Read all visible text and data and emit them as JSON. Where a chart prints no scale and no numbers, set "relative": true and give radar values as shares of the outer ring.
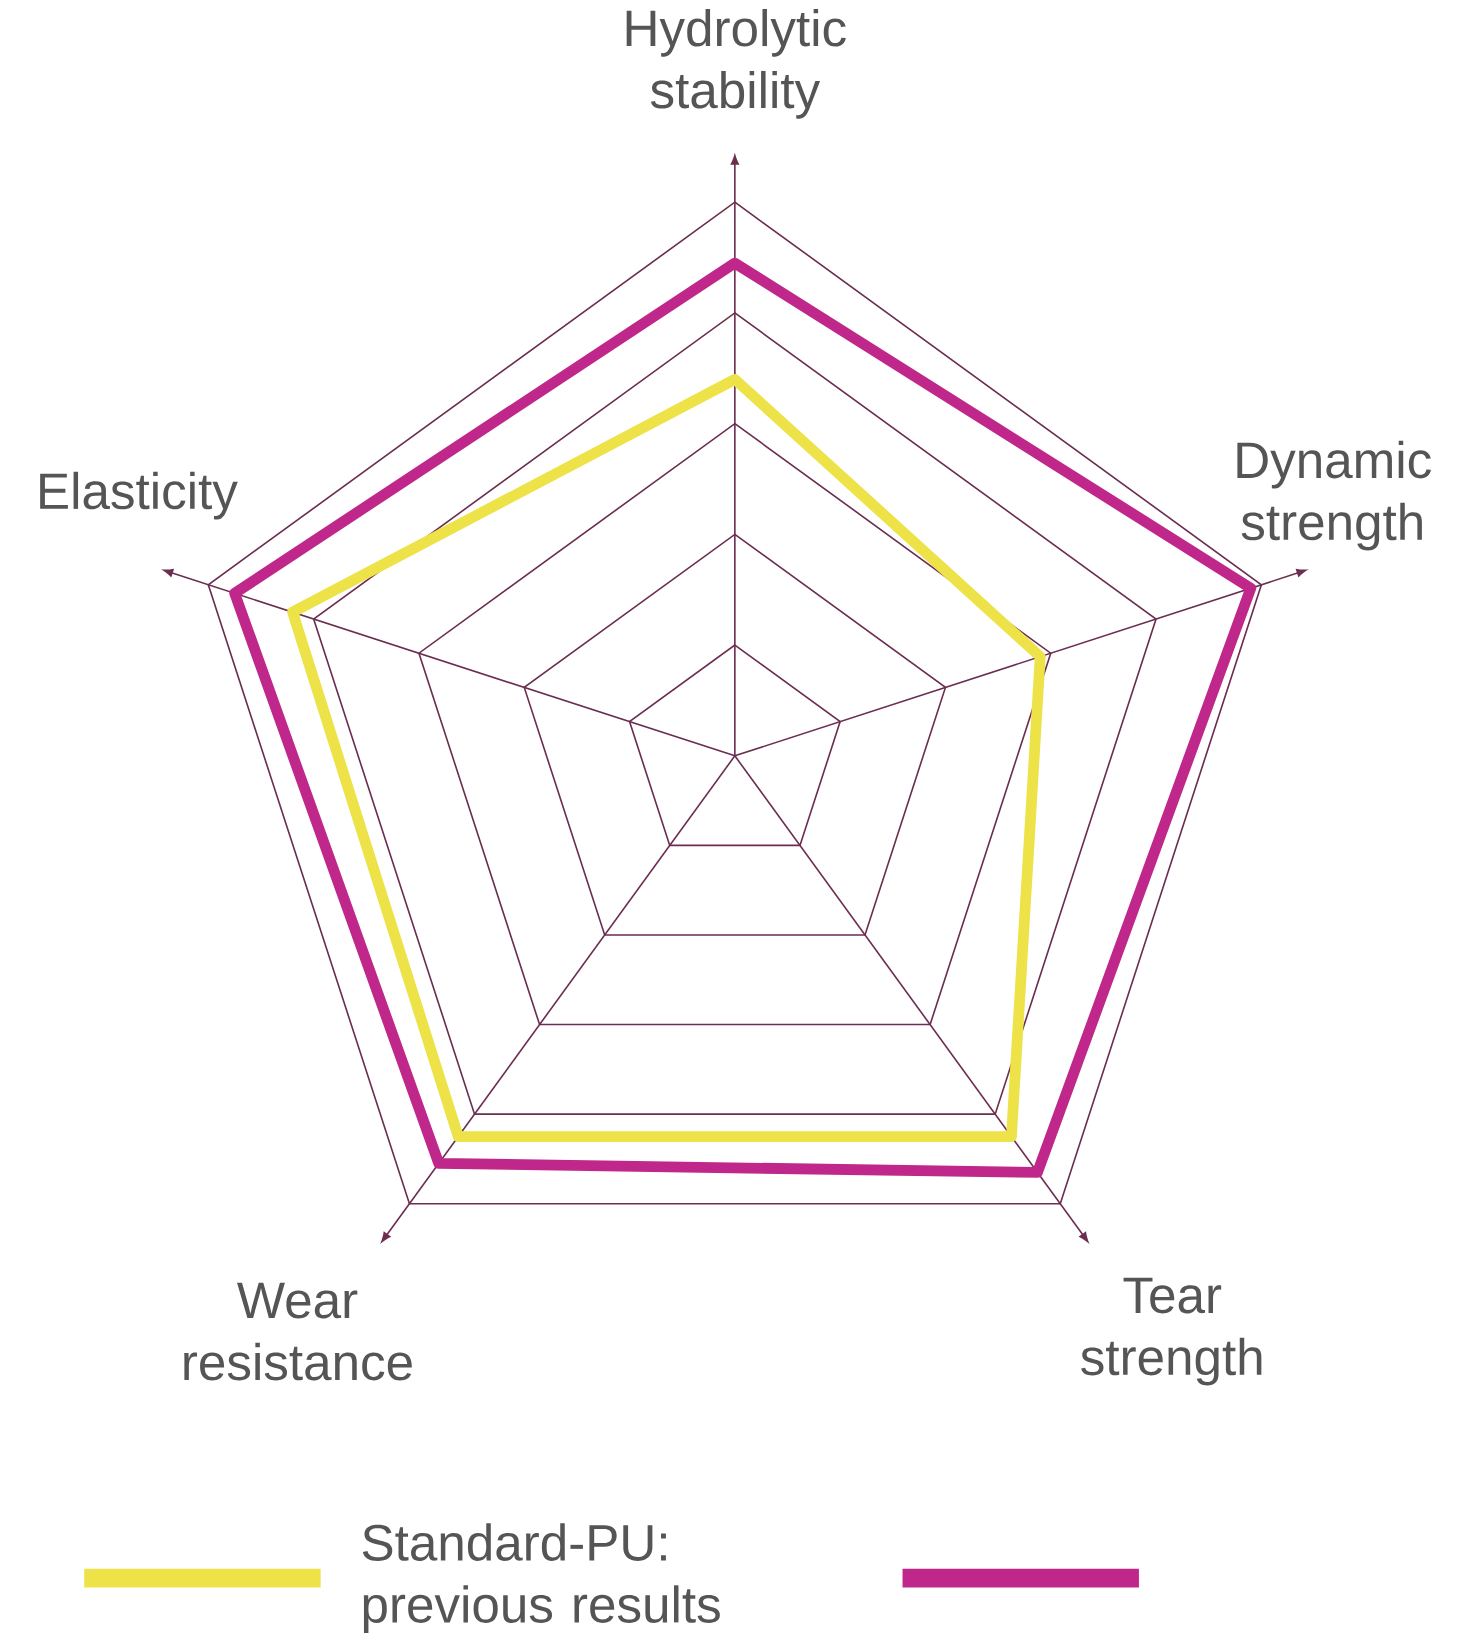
{
  "chart_data": {
    "type": "radar",
    "relative": true,
    "categories": [
      "Hydrolytic stability",
      "Dynamic strength",
      "Tear strength",
      "Wear resistance",
      "Elasticity"
    ],
    "series": [
      {
        "name": "Standard-PU: previous results",
        "color": "#ede247",
        "values": [
          0.68,
          0.58,
          0.85,
          0.85,
          0.84
        ]
      },
      {
        "color": "#c0278a",
        "values": [
          0.89,
          0.98,
          0.93,
          0.91,
          0.95
        ]
      }
    ],
    "legend": "bottom",
    "marker": "none",
    "line_style": "solid"
  }
}
